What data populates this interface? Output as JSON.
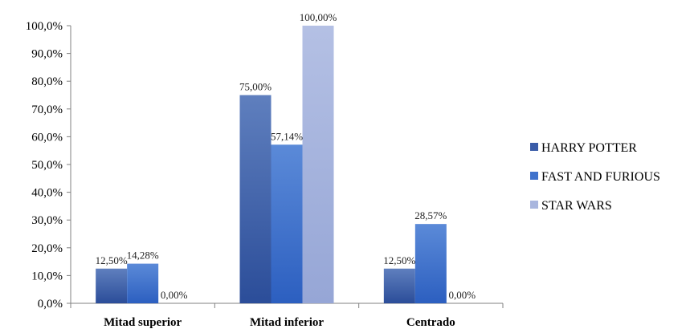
{
  "chart_data": {
    "type": "bar",
    "categories": [
      "Mitad superior",
      "Mitad inferior",
      "Centrado"
    ],
    "series": [
      {
        "name": "HARRY POTTER",
        "values": [
          12.5,
          75.0,
          12.5
        ],
        "labels": [
          "12,50%",
          "75,00%",
          "12,50%"
        ],
        "color": "#3a5ca8"
      },
      {
        "name": "FAST AND FURIOUS",
        "values": [
          14.28,
          57.14,
          28.57
        ],
        "labels": [
          "14,28%",
          "57,14%",
          "28,57%"
        ],
        "color": "#3f72cc"
      },
      {
        "name": "STAR WARS",
        "values": [
          0.0,
          100.0,
          0.0
        ],
        "labels": [
          "0,00%",
          "100,00%",
          "0,00%"
        ],
        "color": "#a9b6de"
      }
    ],
    "ylim": [
      0,
      100
    ],
    "y_ticks": [
      "0,0%",
      "10,0%",
      "20,0%",
      "30,0%",
      "40,0%",
      "50,0%",
      "60,0%",
      "70,0%",
      "80,0%",
      "90,0%",
      "100,0%"
    ],
    "grid": false,
    "legend_position": "right"
  }
}
